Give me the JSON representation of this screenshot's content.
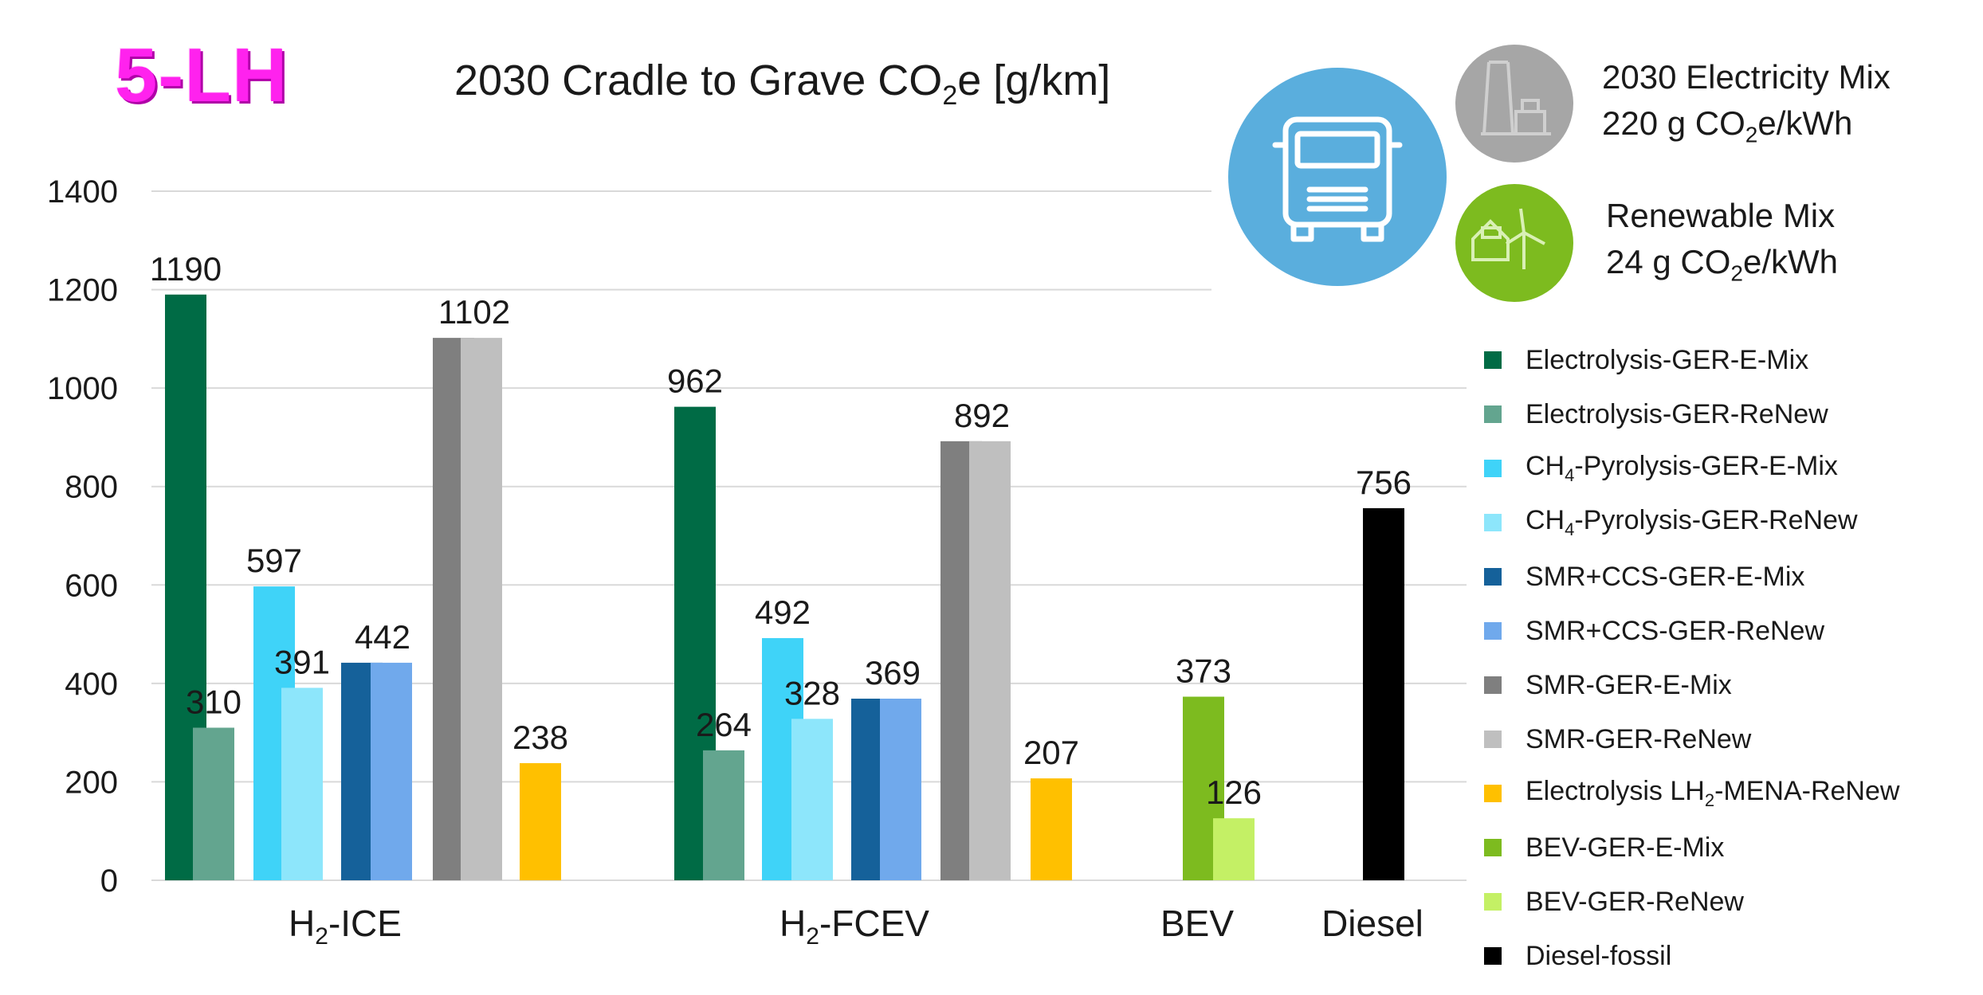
{
  "badge": "5-LH",
  "title_parts": {
    "pre": "2030 Cradle to Grave CO",
    "sub": "2",
    "post": "e [g/km]"
  },
  "electricity_mix": {
    "line1": "2030 Electricity Mix",
    "line2_pre": "220 g CO",
    "line2_sub": "2",
    "line2_post": "e/kWh",
    "icon": "power-plant-icon",
    "color": "#a6a6a6"
  },
  "renewable_mix": {
    "line1": "Renewable Mix",
    "line2_pre": "24 g CO",
    "line2_sub": "2",
    "line2_post": "e/kWh",
    "icon": "wind-turbine-house-icon",
    "color": "#7dbb1f"
  },
  "truck_icon": {
    "icon": "truck-icon",
    "color": "#5aaedd"
  },
  "legend": [
    {
      "pre": "Electrolysis-GER-E-Mix",
      "sub": "",
      "post": "",
      "color": "#006b45"
    },
    {
      "pre": "Electrolysis-GER-ReNew",
      "sub": "",
      "post": "",
      "color": "#63a58f"
    },
    {
      "pre": "CH",
      "sub": "4",
      "post": "-Pyrolysis-GER-E-Mix",
      "color": "#3fd3f8"
    },
    {
      "pre": "CH",
      "sub": "4",
      "post": "-Pyrolysis-GER-ReNew",
      "color": "#8de6fb"
    },
    {
      "pre": "SMR+CCS-GER-E-Mix",
      "sub": "",
      "post": "",
      "color": "#15619a"
    },
    {
      "pre": "SMR+CCS-GER-ReNew",
      "sub": "",
      "post": "",
      "color": "#70a9ec"
    },
    {
      "pre": "SMR-GER-E-Mix",
      "sub": "",
      "post": "",
      "color": "#7f7f7f"
    },
    {
      "pre": "SMR-GER-ReNew",
      "sub": "",
      "post": "",
      "color": "#bfbfbf"
    },
    {
      "pre": "Electrolysis LH",
      "sub": "2",
      "post": "-MENA-ReNew",
      "color": "#ffc000"
    },
    {
      "pre": "BEV-GER-E-Mix",
      "sub": "",
      "post": "",
      "color": "#7dbb1f"
    },
    {
      "pre": "BEV-GER-ReNew",
      "sub": "",
      "post": "",
      "color": "#c4f065"
    },
    {
      "pre": "Diesel-fossil",
      "sub": "",
      "post": "",
      "color": "#000000"
    }
  ],
  "chart_data": {
    "type": "bar",
    "title": "2030 Cradle to Grave CO2e [g/km]",
    "ylim": [
      0,
      1400
    ],
    "yticks": [
      0,
      200,
      400,
      600,
      800,
      1000,
      1200,
      1400
    ],
    "grid": true,
    "legend_position": "right",
    "categories": [
      {
        "pre": "H",
        "sub": "2",
        "post": "-ICE",
        "bars": [
          {
            "series": "Electrolysis-GER-E-Mix",
            "value": 1190,
            "label": "1190"
          },
          {
            "series": "Electrolysis-GER-ReNew",
            "value": 310,
            "label": "310"
          },
          {
            "series": "CH4-Pyrolysis-GER-E-Mix",
            "value": 597,
            "label": "597"
          },
          {
            "series": "CH4-Pyrolysis-GER-ReNew",
            "value": 391,
            "label": "391"
          },
          {
            "series": "SMR+CCS-GER-E-Mix",
            "value": 442,
            "label": "442"
          },
          {
            "series": "SMR+CCS-GER-ReNew",
            "value": 442,
            "label": ""
          },
          {
            "series": "SMR-GER-E-Mix",
            "value": 1102,
            "label": "1102"
          },
          {
            "series": "SMR-GER-ReNew",
            "value": 1102,
            "label": ""
          },
          {
            "series": "Electrolysis LH2-MENA-ReNew",
            "value": 238,
            "label": "238"
          }
        ]
      },
      {
        "pre": "H",
        "sub": "2",
        "post": "-FCEV",
        "bars": [
          {
            "series": "Electrolysis-GER-E-Mix",
            "value": 962,
            "label": "962"
          },
          {
            "series": "Electrolysis-GER-ReNew",
            "value": 264,
            "label": "264"
          },
          {
            "series": "CH4-Pyrolysis-GER-E-Mix",
            "value": 492,
            "label": "492"
          },
          {
            "series": "CH4-Pyrolysis-GER-ReNew",
            "value": 328,
            "label": "328"
          },
          {
            "series": "SMR+CCS-GER-E-Mix",
            "value": 369,
            "label": "369"
          },
          {
            "series": "SMR+CCS-GER-ReNew",
            "value": 369,
            "label": ""
          },
          {
            "series": "SMR-GER-E-Mix",
            "value": 892,
            "label": "892"
          },
          {
            "series": "SMR-GER-ReNew",
            "value": 892,
            "label": ""
          },
          {
            "series": "Electrolysis LH2-MENA-ReNew",
            "value": 207,
            "label": "207"
          }
        ]
      },
      {
        "pre": "BEV",
        "sub": "",
        "post": "",
        "bars": [
          {
            "series": "BEV-GER-E-Mix",
            "value": 373,
            "label": "373"
          },
          {
            "series": "BEV-GER-ReNew",
            "value": 126,
            "label": "126"
          }
        ]
      },
      {
        "pre": "Diesel",
        "sub": "",
        "post": "",
        "bars": [
          {
            "series": "Diesel-fossil",
            "value": 756,
            "label": "756"
          }
        ]
      }
    ]
  }
}
